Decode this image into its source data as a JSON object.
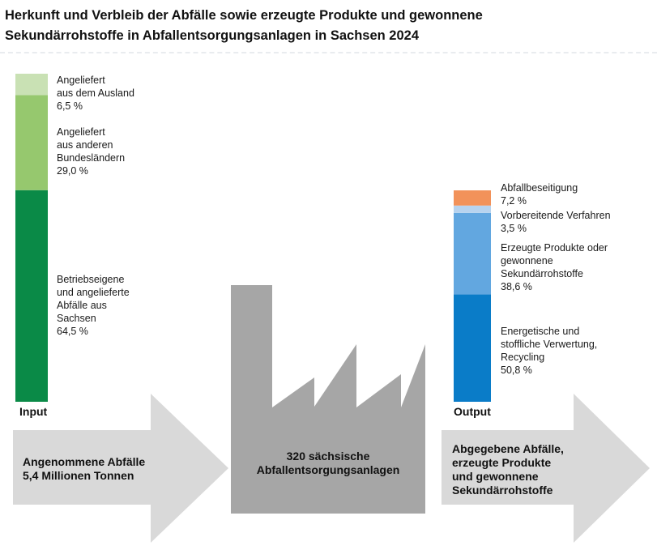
{
  "title": {
    "line1": "Herkunft und Verbleib der Abfälle sowie erzeugte Produkte und gewonnene",
    "line2": "Sekundärrohstoffe in Abfallentsorgungsanlagen in Sachsen 2024"
  },
  "chart_data": {
    "type": "stacked-bar",
    "bars": [
      {
        "name": "Input",
        "segments": [
          {
            "lines": [
              "Betriebseigene",
              "und angelieferte",
              "Abfälle aus",
              "Sachsen"
            ],
            "value": 64.5,
            "value_label": "64,5 %",
            "color": "#0a8a47"
          },
          {
            "lines": [
              "Angeliefert",
              "aus anderen",
              "Bundesländern"
            ],
            "value": 29.0,
            "value_label": "29,0 %",
            "color": "#96c86e"
          },
          {
            "lines": [
              "Angeliefert",
              "aus dem Ausland"
            ],
            "value": 6.5,
            "value_label": "6,5 %",
            "color": "#c9e1b4"
          }
        ]
      },
      {
        "name": "Output",
        "segments": [
          {
            "lines": [
              "Energetische und",
              "stoffliche Verwertung,",
              "Recycling"
            ],
            "value": 50.8,
            "value_label": "50,8 %",
            "color": "#0a7cc8"
          },
          {
            "lines": [
              "Erzeugte Produkte oder",
              "gewonnene",
              "Sekundärrohstoffe"
            ],
            "value": 38.6,
            "value_label": "38,6 %",
            "color": "#62a7e0"
          },
          {
            "lines": [
              "Vorbereitende Verfahren"
            ],
            "value": 3.5,
            "value_label": "3,5 %",
            "color": "#b7d3ef"
          },
          {
            "lines": [
              "Abfallbeseitigung"
            ],
            "value": 7.2,
            "value_label": "7,2 %",
            "color": "#f2925a"
          }
        ]
      }
    ],
    "flow": {
      "input_lines": [
        "Angenommene Abfälle",
        "5,4 Millionen Tonnen"
      ],
      "factory_lines": [
        "320 sächsische",
        "Abfallentsorgungsanlagen"
      ],
      "output_lines": [
        "Abgegebene Abfälle,",
        "erzeugte Produkte",
        "und gewonnene",
        "Sekundärrohstoffe"
      ]
    },
    "colors": {
      "arrow": "#d9d9d9",
      "factory": "#a6a6a6"
    }
  }
}
